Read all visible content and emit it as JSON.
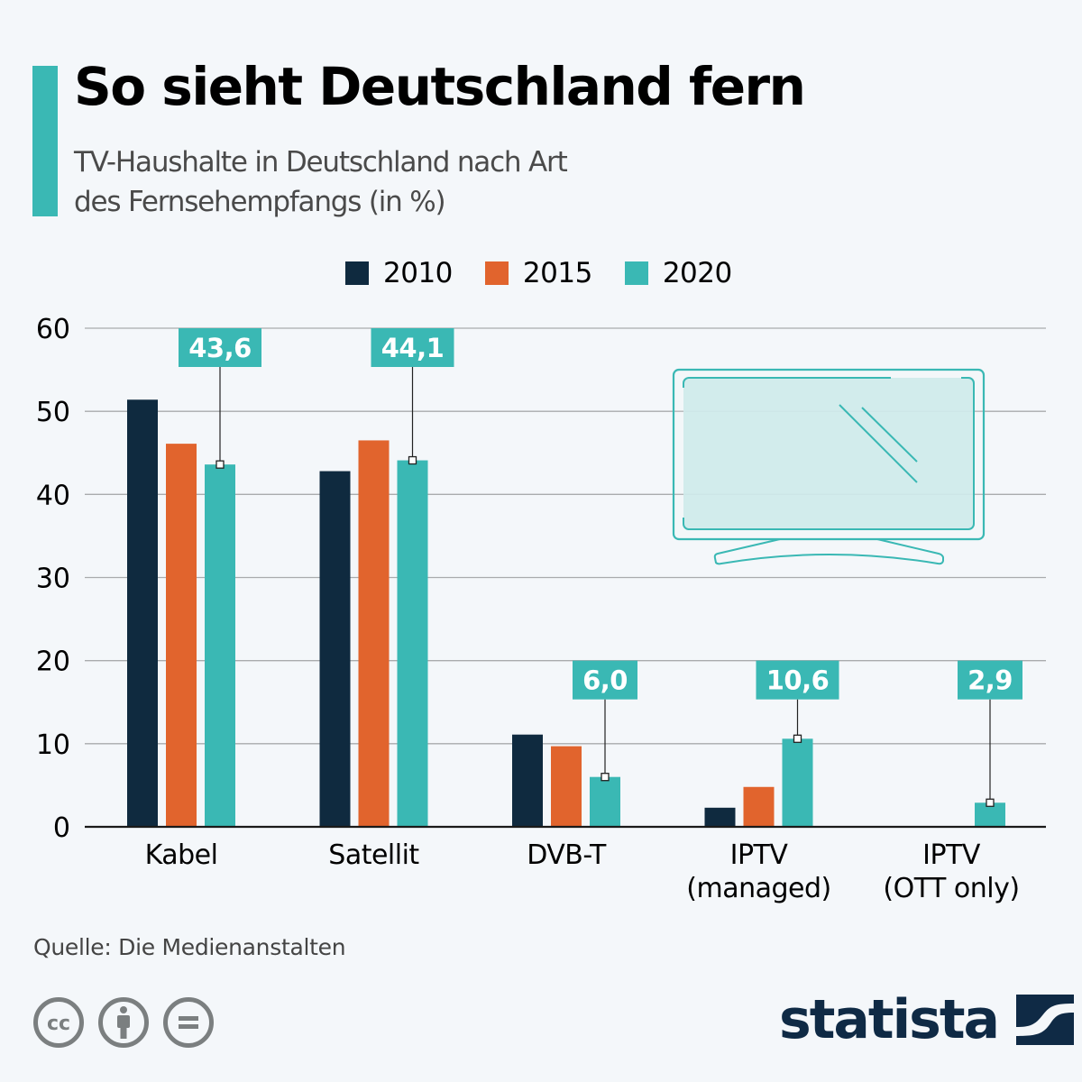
{
  "header": {
    "title": "So sieht Deutschland fern",
    "subtitle_line1": "TV-Haushalte in Deutschland nach Art",
    "subtitle_line2": "des Fernsehempfangs (in %)"
  },
  "colors": {
    "accent": "#3ab8b4",
    "series_2010": "#0f2a3f",
    "series_2015": "#e1642d",
    "series_2020": "#3ab8b4",
    "tv_fill": "#cfeaea",
    "text_dark": "#000000",
    "text_muted": "#4a4a4a",
    "logo": "#0f2a45",
    "license_icons": "#7b7f80"
  },
  "chart_data": {
    "type": "bar",
    "title": "So sieht Deutschland fern",
    "subtitle": "TV-Haushalte in Deutschland nach Art des Fernsehempfangs (in %)",
    "xlabel": "",
    "ylabel": "",
    "ylim": [
      0,
      60
    ],
    "yticks": [
      0,
      10,
      20,
      30,
      40,
      50,
      60
    ],
    "grid": true,
    "legend_position": "top-center",
    "categories": [
      [
        "Kabel"
      ],
      [
        "Satellit"
      ],
      [
        "DVB-T"
      ],
      [
        "IPTV",
        "(managed)"
      ],
      [
        "IPTV",
        "(OTT only)"
      ]
    ],
    "series": [
      {
        "name": "2010",
        "color": "#0f2a3f",
        "values": [
          51.4,
          42.8,
          11.1,
          2.3,
          null
        ]
      },
      {
        "name": "2015",
        "color": "#e1642d",
        "values": [
          46.1,
          46.5,
          9.7,
          4.8,
          null
        ]
      },
      {
        "name": "2020",
        "color": "#3ab8b4",
        "values": [
          43.6,
          44.1,
          6.0,
          10.6,
          2.9
        ]
      }
    ],
    "annotations": [
      {
        "category_index": 0,
        "series": "2020",
        "label": "43,6",
        "callout_value": 60
      },
      {
        "category_index": 1,
        "series": "2020",
        "label": "44,1",
        "callout_value": 60
      },
      {
        "category_index": 2,
        "series": "2020",
        "label": "6,0",
        "callout_value": 20
      },
      {
        "category_index": 3,
        "series": "2020",
        "label": "10,6",
        "callout_value": 20
      },
      {
        "category_index": 4,
        "series": "2020",
        "label": "2,9",
        "callout_value": 20
      }
    ]
  },
  "illustration": {
    "icon": "television-icon"
  },
  "footer": {
    "source": "Quelle: Die Medienanstalten",
    "license_icons": [
      "cc-icon",
      "attribution-icon",
      "no-derivatives-icon"
    ],
    "logo_text": "statista"
  }
}
